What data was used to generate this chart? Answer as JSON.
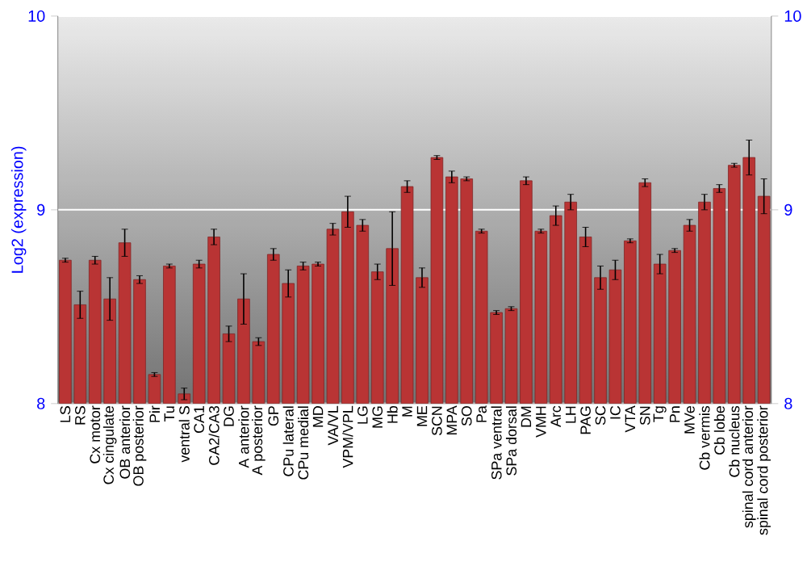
{
  "chart_data": {
    "type": "bar",
    "ylabel": "Log2 (expression)",
    "categories": [
      "LS",
      "RS",
      "Cx motor",
      "Cx cingulate",
      "OB anterior",
      "OB posterior",
      "Pir",
      "Tu",
      "ventral S",
      "CA1",
      "CA2/CA3",
      "DG",
      "A anterior",
      "A posterior",
      "GP",
      "CPu lateral",
      "CPu medial",
      "MD",
      "VA/VL",
      "VPM/VPL",
      "LG",
      "MG",
      "Hb",
      "M",
      "ME",
      "SCN",
      "MPA",
      "SO",
      "Pa",
      "SPa ventral",
      "SPa dorsal",
      "DM",
      "VMH",
      "Arc",
      "LH",
      "PAG",
      "SC",
      "IC",
      "VTA",
      "SN",
      "Tg",
      "Pn",
      "MVe",
      "Cb vermis",
      "Cb lobe",
      "Cb nucleus",
      "spinal cord anterior",
      "spinal cord posterior"
    ],
    "values": [
      8.74,
      8.51,
      8.74,
      8.54,
      8.83,
      8.64,
      8.15,
      8.71,
      8.05,
      8.72,
      8.86,
      8.36,
      8.54,
      8.32,
      8.77,
      8.62,
      8.71,
      8.72,
      8.9,
      8.99,
      8.92,
      8.68,
      8.8,
      9.12,
      8.65,
      9.27,
      9.17,
      9.16,
      8.89,
      8.47,
      8.49,
      9.15,
      8.89,
      8.97,
      9.04,
      8.86,
      8.65,
      8.69,
      8.84,
      9.14,
      8.72,
      8.79,
      8.92,
      9.04,
      9.11,
      9.23,
      9.27,
      9.07
    ],
    "errors": [
      0.01,
      0.07,
      0.02,
      0.11,
      0.07,
      0.02,
      0.01,
      0.01,
      0.03,
      0.02,
      0.04,
      0.04,
      0.13,
      0.02,
      0.03,
      0.07,
      0.02,
      0.01,
      0.03,
      0.08,
      0.03,
      0.04,
      0.19,
      0.03,
      0.05,
      0.01,
      0.03,
      0.01,
      0.01,
      0.01,
      0.01,
      0.02,
      0.01,
      0.05,
      0.04,
      0.05,
      0.06,
      0.05,
      0.01,
      0.02,
      0.05,
      0.01,
      0.03,
      0.04,
      0.02,
      0.01,
      0.09,
      0.09
    ],
    "color": "#b93434",
    "ylim": [
      8,
      10
    ],
    "yticks": [
      8,
      9,
      10
    ],
    "y2lim": [
      8,
      10
    ],
    "y2ticks": [
      8,
      9,
      10
    ],
    "grid": "y"
  }
}
